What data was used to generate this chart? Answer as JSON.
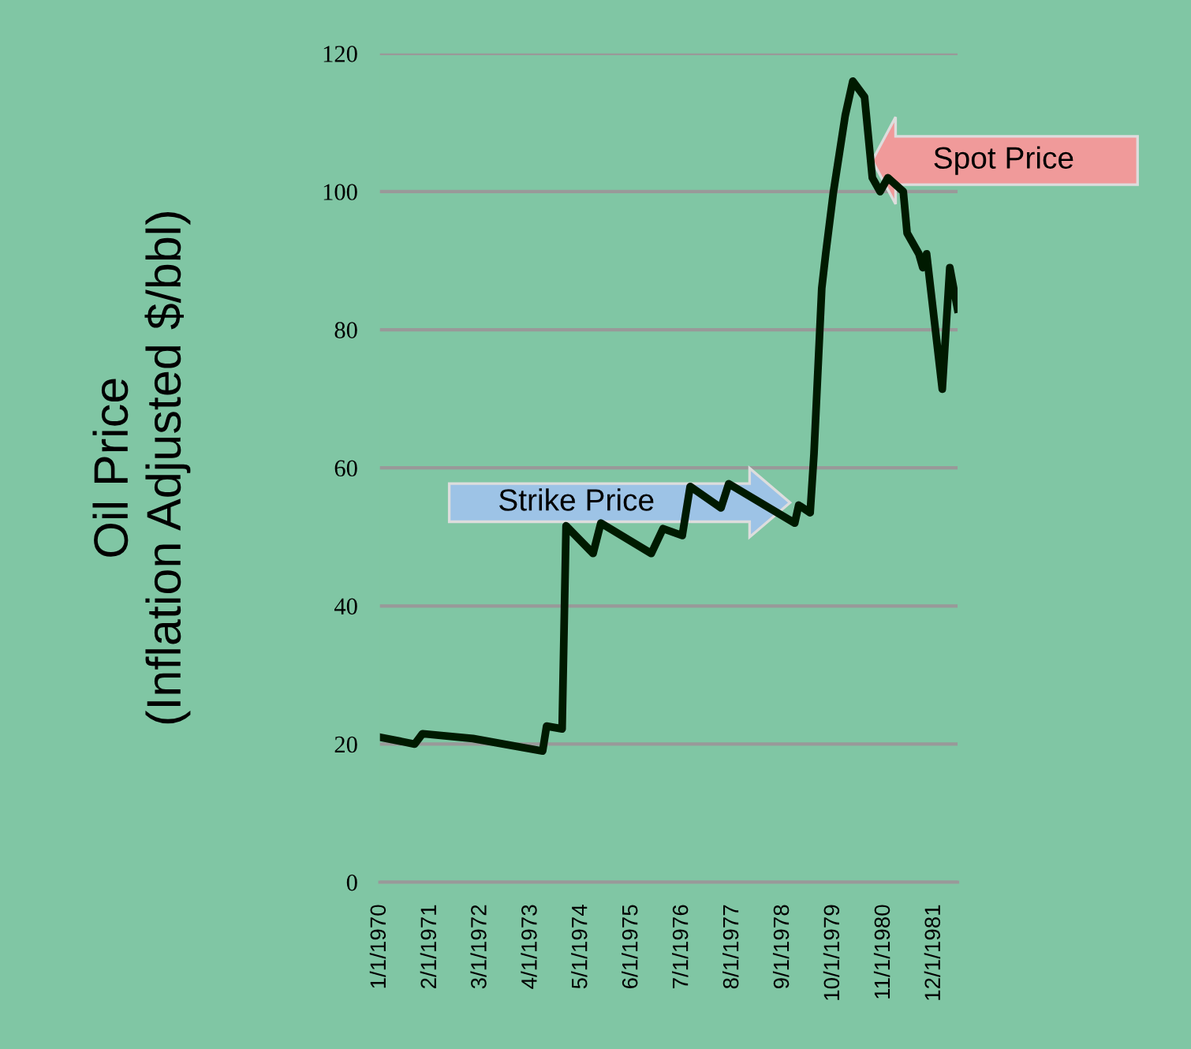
{
  "chart_data": {
    "type": "line",
    "ylabel": "Oil Price\n(Inflation Adjusted $/bbl)",
    "x": [
      "1970-01",
      "1970-10",
      "1970-12",
      "1972-01",
      "1973-07",
      "1973-08",
      "1973-12",
      "1974-01",
      "1974-08",
      "1974-10",
      "1975-11",
      "1976-02",
      "1976-07",
      "1976-09",
      "1977-05",
      "1977-07",
      "1978-12",
      "1979-01",
      "1979-04",
      "1979-05",
      "1979-07",
      "1979-08",
      "1979-10",
      "1980-01",
      "1980-03",
      "1980-06",
      "1980-08",
      "1980-10",
      "1980-12",
      "1981-04",
      "1981-05",
      "1981-08",
      "1981-09",
      "1981-10",
      "1982-02",
      "1982-04",
      "1982-06"
    ],
    "series": [
      {
        "color": "#001a00",
        "values": [
          21,
          20,
          21.5,
          20.8,
          19,
          22.6,
          22.2,
          51.6,
          47.6,
          52,
          47.6,
          51.2,
          50.2,
          57.3,
          54.2,
          57.7,
          52,
          54.6,
          53.5,
          62,
          86,
          91,
          100,
          111,
          116,
          113.7,
          102,
          100,
          102,
          100,
          94,
          91,
          89,
          91,
          71.4,
          89,
          83
        ]
      }
    ],
    "xlim": [
      "1970-01-01",
      "1982-06-01"
    ],
    "xticks": [
      {
        "value": "1970-01-01",
        "label": "1/1/1970"
      },
      {
        "value": "1971-02-01",
        "label": "2/1/1971"
      },
      {
        "value": "1972-03-01",
        "label": "3/1/1972"
      },
      {
        "value": "1973-04-01",
        "label": "4/1/1973"
      },
      {
        "value": "1974-05-01",
        "label": "5/1/1974"
      },
      {
        "value": "1975-06-01",
        "label": "6/1/1975"
      },
      {
        "value": "1976-07-01",
        "label": "7/1/1976"
      },
      {
        "value": "1977-08-01",
        "label": "8/1/1977"
      },
      {
        "value": "1978-09-01",
        "label": "9/1/1978"
      },
      {
        "value": "1979-10-01",
        "label": "10/1/1979"
      },
      {
        "value": "1980-11-01",
        "label": "11/1/1980"
      },
      {
        "value": "1981-12-01",
        "label": "12/1/1981"
      }
    ],
    "ylim": [
      0,
      120
    ],
    "yticks": [
      0,
      20,
      40,
      60,
      80,
      100,
      120
    ],
    "grid": "y",
    "legend": false,
    "marker": "none",
    "line_style": "solid",
    "annotations": [
      "Strike Price",
      {
        "text": "Spot Price",
        "x": "1980-08",
        "y": 104.5
      }
    ]
  }
}
